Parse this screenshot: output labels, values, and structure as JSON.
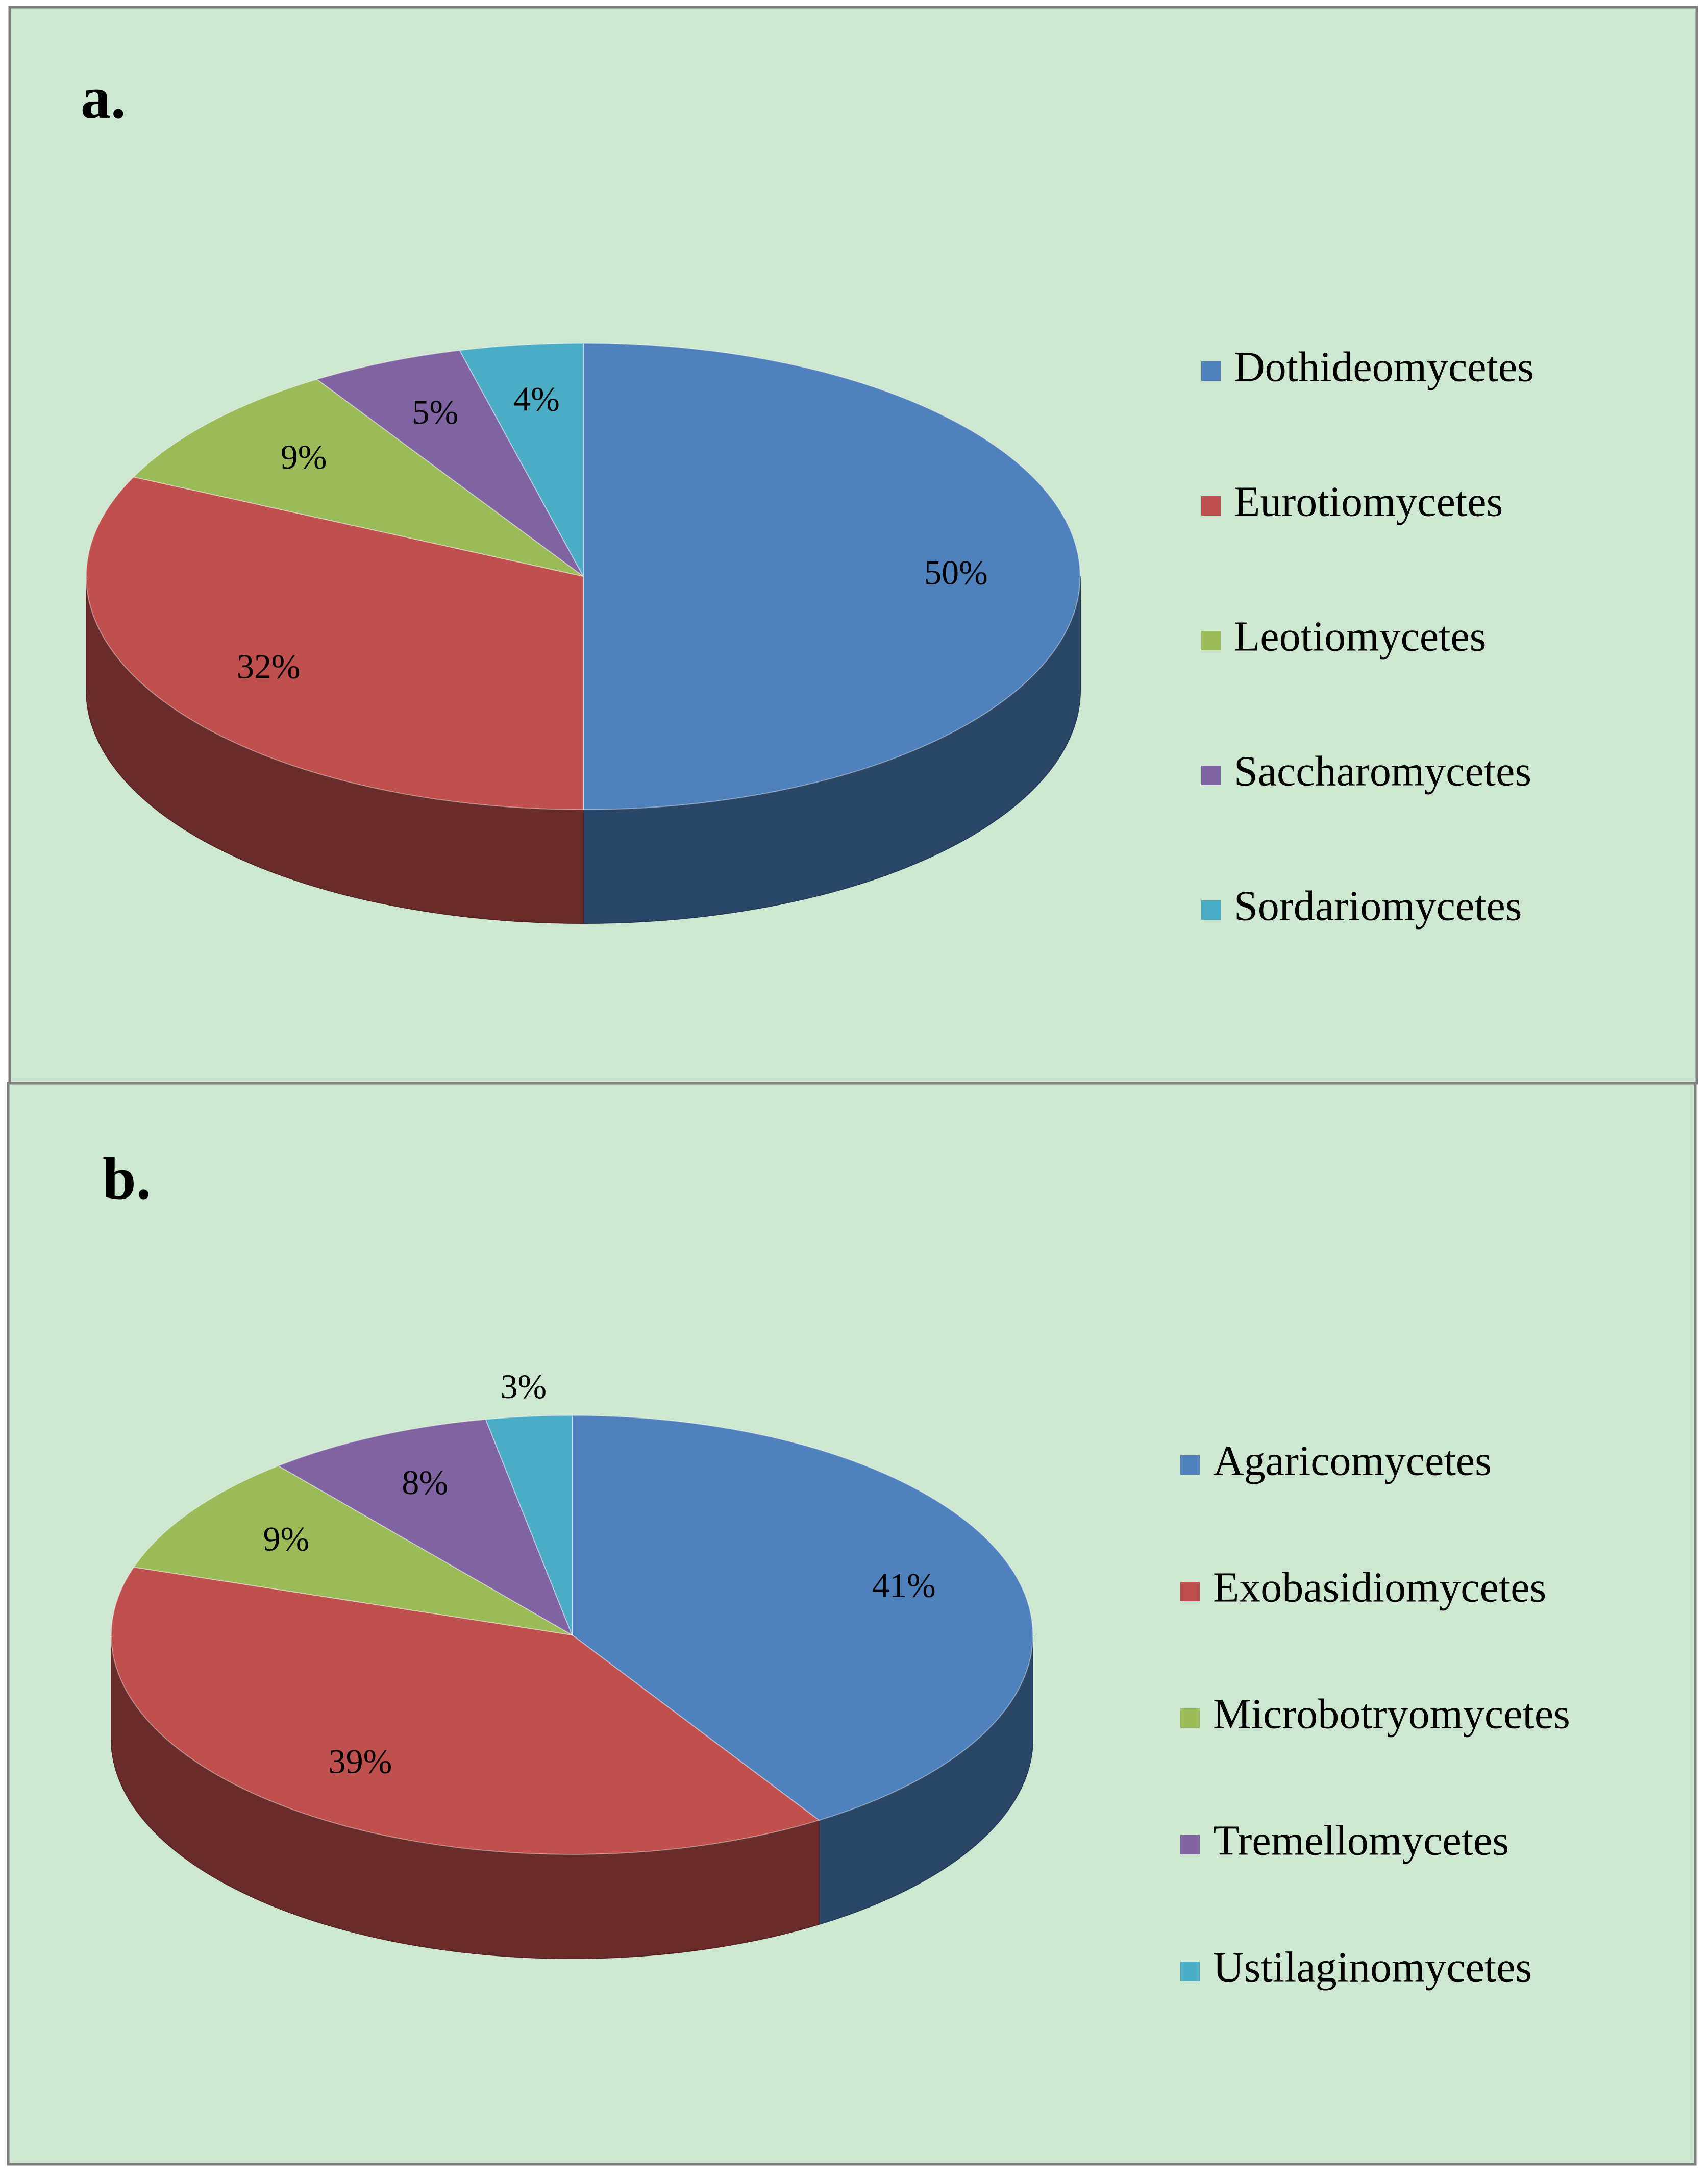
{
  "chart_data": [
    {
      "type": "pie",
      "title": "a.",
      "categories": [
        "Dothideomycetes",
        "Eurotiomycetes",
        "Leotiomycetes",
        "Saccharomycetes",
        "Sordariomycetes"
      ],
      "values": [
        50,
        32,
        9,
        5,
        4
      ],
      "value_labels": [
        "50%",
        "32%",
        "9%",
        "5%",
        "4%"
      ],
      "colors": [
        "#4f81bd",
        "#c0504d",
        "#9bbb59",
        "#8064a2",
        "#4bacc6"
      ],
      "legend": "right"
    },
    {
      "type": "pie",
      "title": "b.",
      "categories": [
        "Agaricomycetes",
        "Exobasidiomycetes",
        "Microbotryomycetes",
        "Tremellomycetes",
        "Ustilaginomycetes"
      ],
      "values": [
        41,
        39,
        9,
        8,
        3
      ],
      "value_labels": [
        "41%",
        "39%",
        "9%",
        "8%",
        "3%"
      ],
      "colors": [
        "#4f81bd",
        "#c0504d",
        "#9bbb59",
        "#8064a2",
        "#4bacc6"
      ],
      "legend": "right"
    }
  ]
}
